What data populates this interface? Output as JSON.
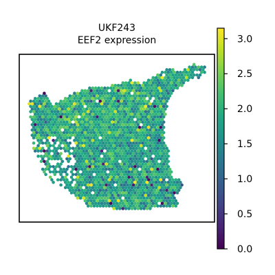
{
  "chart_data": {
    "type": "scatter",
    "subtype": "spatial-hexbin",
    "title_lines": [
      "UKF243",
      "EEF2 expression"
    ],
    "xlabel": "",
    "ylabel": "",
    "colorbar": {
      "colormap": "viridis",
      "vmin": 0.0,
      "vmax": 3.15,
      "ticks": [
        0.0,
        0.5,
        1.0,
        1.5,
        2.0,
        2.5,
        3.0
      ],
      "tick_labels": [
        "0.0",
        "0.5",
        "1.0",
        "1.5",
        "2.0",
        "2.5",
        "3.0"
      ],
      "placement": "right"
    },
    "value_summary": {
      "typical": 1.8,
      "min": 0.0,
      "max": 3.15
    },
    "grid": false
  }
}
